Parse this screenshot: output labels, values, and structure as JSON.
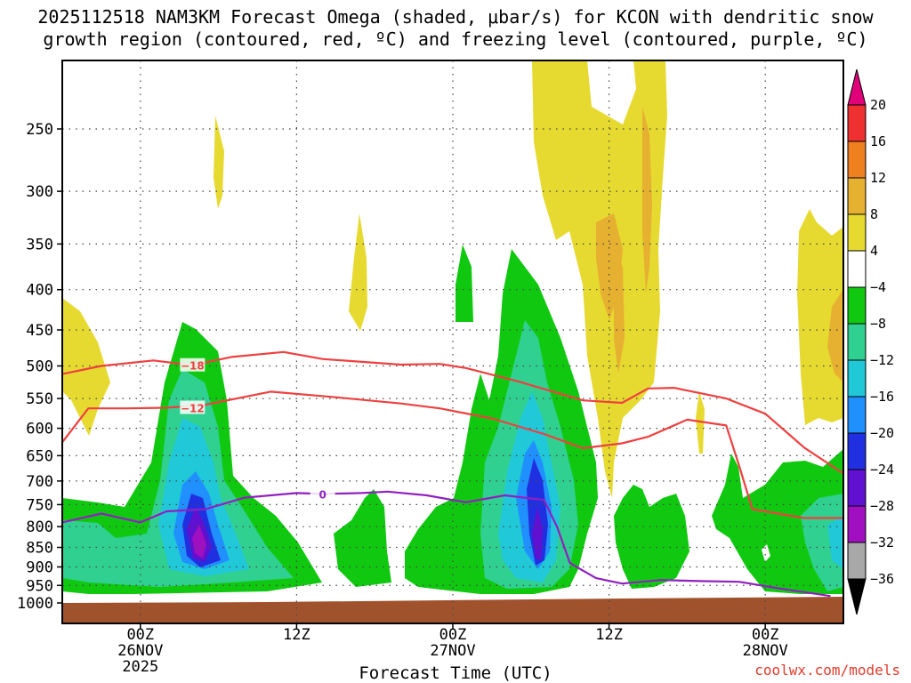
{
  "chart_data": {
    "type": "heatmap",
    "title_line1": "2025112518 NAM3KM Forecast Omega (shaded, μbar/s) for KCON with dendritic snow",
    "title_line2": "growth region (contoured, red, ºC) and freezing level (contoured, purple, ºC)",
    "xlabel": "Forecast Time (UTC)",
    "ylabel": "",
    "credit": "coolwx.com/models",
    "y_axis": {
      "scale": "log-pressure",
      "unit": "hPa",
      "range": [
        1000,
        200
      ],
      "ticks": [
        250,
        300,
        350,
        400,
        450,
        500,
        550,
        600,
        650,
        700,
        750,
        800,
        850,
        900,
        950,
        1000
      ]
    },
    "x_axis": {
      "unit": "hours since 2025-11-25 18Z",
      "range": [
        0,
        60
      ],
      "ticks": [
        {
          "hour": 6,
          "label": "00Z",
          "sub1": "26NOV",
          "sub2": "2025"
        },
        {
          "hour": 18,
          "label": "12Z",
          "sub1": "",
          "sub2": ""
        },
        {
          "hour": 30,
          "label": "00Z",
          "sub1": "27NOV",
          "sub2": ""
        },
        {
          "hour": 42,
          "label": "12Z",
          "sub1": "",
          "sub2": ""
        },
        {
          "hour": 54,
          "label": "00Z",
          "sub1": "28NOV",
          "sub2": ""
        }
      ]
    },
    "colorbar": {
      "levels": [
        "20",
        "16",
        "12",
        "8",
        "4",
        "−4",
        "−8",
        "−12",
        "−16",
        "−20",
        "−24",
        "−28",
        "−32",
        "−36"
      ],
      "colors": [
        "#ff3060",
        "#ee3030",
        "#ee8020",
        "#e6b030",
        "#e6da30",
        "#ffffff",
        "#10c810",
        "#30d090",
        "#20c8d8",
        "#2090ff",
        "#2030e0",
        "#6010d0",
        "#a010c0",
        "#a8a8a8",
        "#000000"
      ],
      "top_color": "#e0007a",
      "bottom_color": "#000000"
    },
    "series": [
      {
        "name": "-18 C isotherm",
        "color": "#ee4040",
        "label": "−18",
        "label_at": [
          10,
          499
        ],
        "points": [
          [
            0,
            512
          ],
          [
            3,
            500
          ],
          [
            7,
            492
          ],
          [
            10,
            499
          ],
          [
            13,
            487
          ],
          [
            17,
            480
          ],
          [
            20,
            490
          ],
          [
            26,
            498
          ],
          [
            29,
            497
          ],
          [
            31,
            503
          ],
          [
            35,
            523
          ],
          [
            40,
            553
          ],
          [
            43,
            557
          ],
          [
            45,
            534
          ],
          [
            47,
            533
          ],
          [
            51,
            550
          ],
          [
            54,
            575
          ],
          [
            57,
            635
          ],
          [
            60,
            685
          ]
        ]
      },
      {
        "name": "-12 C isotherm",
        "color": "#ee4040",
        "label": "−12",
        "label_at": [
          10,
          565
        ],
        "points": [
          [
            0,
            625
          ],
          [
            2,
            566
          ],
          [
            5,
            566
          ],
          [
            8,
            565
          ],
          [
            11,
            560
          ],
          [
            16,
            539
          ],
          [
            21,
            548
          ],
          [
            26,
            558
          ],
          [
            29,
            566
          ],
          [
            33,
            583
          ],
          [
            37,
            610
          ],
          [
            40,
            636
          ],
          [
            43,
            627
          ],
          [
            45,
            615
          ],
          [
            48,
            585
          ],
          [
            51,
            595
          ],
          [
            52,
            670
          ],
          [
            53,
            760
          ],
          [
            57,
            780
          ],
          [
            60,
            780
          ]
        ]
      },
      {
        "name": "0 C freezing level",
        "color": "#9020c0",
        "label": "0",
        "label_at": [
          20,
          727
        ],
        "points": [
          [
            0,
            790
          ],
          [
            3,
            770
          ],
          [
            6,
            790
          ],
          [
            8,
            765
          ],
          [
            11,
            760
          ],
          [
            14,
            735
          ],
          [
            18,
            725
          ],
          [
            20,
            727
          ],
          [
            23,
            725
          ],
          [
            25,
            722
          ],
          [
            28,
            730
          ],
          [
            31,
            745
          ],
          [
            34,
            730
          ],
          [
            37,
            740
          ],
          [
            38,
            800
          ],
          [
            39,
            890
          ],
          [
            41,
            930
          ],
          [
            43,
            945
          ],
          [
            46,
            935
          ],
          [
            49,
            938
          ],
          [
            52,
            940
          ],
          [
            55,
            958
          ],
          [
            59,
            980
          ]
        ]
      }
    ],
    "shaded_regions": [
      {
        "name": "surface",
        "color": "#a0522d"
      },
      {
        "name": "upward motion 25-26 Nov",
        "min_value": -36
      },
      {
        "name": "upward motion 27 Nov",
        "min_value": -24
      },
      {
        "name": "downward motion 27 Nov",
        "max_value": 12
      }
    ]
  }
}
